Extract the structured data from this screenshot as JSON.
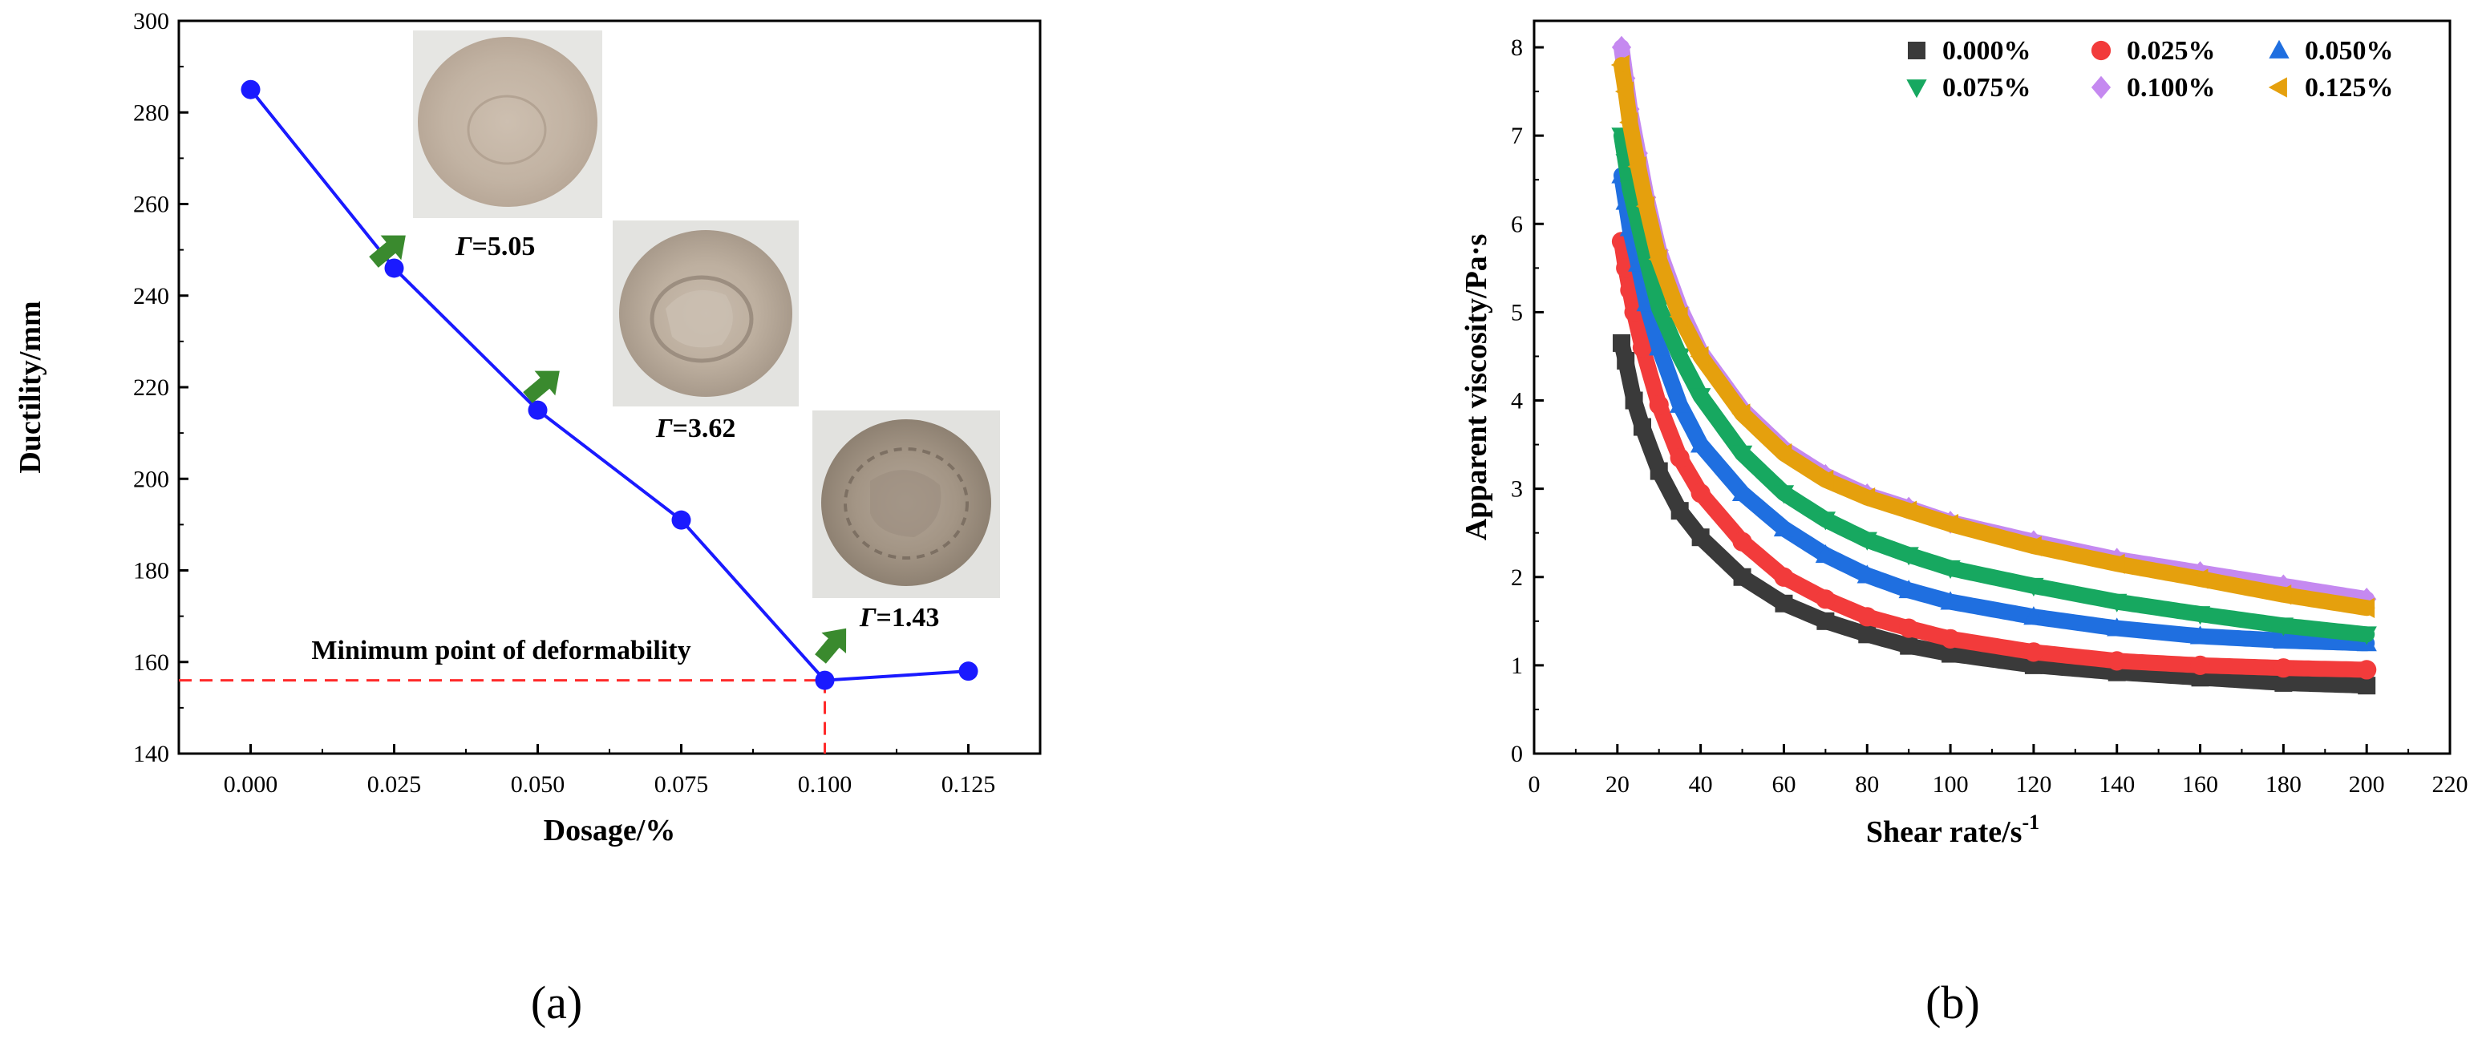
{
  "panel_labels": {
    "a": "(a)",
    "b": "(b)"
  },
  "annotations": {
    "minimum_point": "Minimum point of deformability",
    "gamma_symbol": "Γ",
    "gamma_values": [
      "=5.05",
      "=3.62",
      "=1.43"
    ]
  },
  "colors": {
    "line_a": "#1a1aff",
    "guide": "#ff2a2a",
    "arrow": "#3a8a2e",
    "series": [
      "#3a3a3a",
      "#f23b3b",
      "#1f6fe0",
      "#17a860",
      "#c589f0",
      "#e5a00d"
    ]
  },
  "chart_data": [
    {
      "type": "line",
      "xlabel": "Dosage/%",
      "ylabel": "Ductility/mm",
      "x": [
        0.0,
        0.025,
        0.05,
        0.075,
        0.1,
        0.125
      ],
      "y": [
        285,
        246,
        215,
        191,
        156,
        158
      ],
      "xlim": [
        -0.0125,
        0.1375
      ],
      "ylim": [
        140,
        300
      ],
      "xticks": [
        "0.000",
        "0.025",
        "0.050",
        "0.075",
        "0.100",
        "0.125"
      ],
      "yticks": [
        "140",
        "160",
        "180",
        "200",
        "220",
        "240",
        "260",
        "280",
        "300"
      ],
      "reference": {
        "x": 0.1,
        "y": 156
      },
      "grid": false
    },
    {
      "type": "scatter",
      "xlabel": "Shear rate/s",
      "xlabel_superscript": "-1",
      "ylabel": "Apparent viscosity/Pa·s",
      "xlim": [
        0,
        220
      ],
      "ylim": [
        0,
        8.3
      ],
      "xticks": [
        "0",
        "20",
        "40",
        "60",
        "80",
        "100",
        "120",
        "140",
        "160",
        "180",
        "200",
        "220"
      ],
      "yticks": [
        "0",
        "1",
        "2",
        "3",
        "4",
        "5",
        "6",
        "7",
        "8"
      ],
      "grid": false,
      "legend_position": "top-right",
      "series": [
        {
          "name": "0.000%",
          "marker": "square",
          "x": [
            21,
            22,
            24,
            26,
            30,
            35,
            40,
            50,
            60,
            70,
            80,
            90,
            100,
            120,
            140,
            160,
            180,
            200
          ],
          "y": [
            4.65,
            4.45,
            4.0,
            3.7,
            3.2,
            2.75,
            2.45,
            2.0,
            1.7,
            1.5,
            1.35,
            1.22,
            1.13,
            1.0,
            0.92,
            0.86,
            0.8,
            0.77
          ]
        },
        {
          "name": "0.025%",
          "marker": "circle",
          "x": [
            21,
            22,
            23,
            24,
            26,
            30,
            35,
            40,
            50,
            60,
            70,
            80,
            90,
            100,
            120,
            140,
            160,
            180,
            200
          ],
          "y": [
            5.8,
            5.5,
            5.25,
            5.0,
            4.6,
            3.95,
            3.35,
            2.95,
            2.4,
            2.0,
            1.75,
            1.55,
            1.42,
            1.3,
            1.15,
            1.05,
            1.0,
            0.97,
            0.95
          ]
        },
        {
          "name": "0.050%",
          "marker": "triangle-up",
          "x": [
            21,
            22,
            23,
            25,
            27,
            30,
            35,
            40,
            50,
            60,
            70,
            80,
            90,
            100,
            120,
            140,
            160,
            180,
            200
          ],
          "y": [
            6.55,
            6.25,
            5.95,
            5.55,
            5.1,
            4.6,
            3.95,
            3.5,
            2.95,
            2.55,
            2.25,
            2.02,
            1.85,
            1.72,
            1.55,
            1.42,
            1.33,
            1.28,
            1.25
          ]
        },
        {
          "name": "0.075%",
          "marker": "triangle-down",
          "x": [
            21,
            22,
            23,
            25,
            27,
            30,
            35,
            40,
            50,
            60,
            70,
            80,
            90,
            100,
            120,
            140,
            160,
            180,
            200
          ],
          "y": [
            7.0,
            6.7,
            6.4,
            6.0,
            5.6,
            5.05,
            4.5,
            4.05,
            3.4,
            2.95,
            2.65,
            2.42,
            2.25,
            2.1,
            1.9,
            1.72,
            1.58,
            1.45,
            1.35
          ]
        },
        {
          "name": "0.100%",
          "marker": "diamond",
          "x": [
            21,
            22,
            23,
            25,
            27,
            30,
            35,
            40,
            50,
            60,
            70,
            80,
            90,
            100,
            120,
            140,
            160,
            180,
            200
          ],
          "y": [
            8.0,
            7.65,
            7.3,
            6.8,
            6.3,
            5.7,
            5.05,
            4.55,
            3.9,
            3.45,
            3.15,
            2.93,
            2.78,
            2.62,
            2.4,
            2.2,
            2.05,
            1.9,
            1.75
          ]
        },
        {
          "name": "0.125%",
          "marker": "triangle-left",
          "x": [
            21,
            22,
            23,
            25,
            27,
            30,
            35,
            40,
            50,
            60,
            70,
            80,
            90,
            100,
            120,
            140,
            160,
            180,
            200
          ],
          "y": [
            7.8,
            7.5,
            7.15,
            6.65,
            6.2,
            5.6,
            4.95,
            4.5,
            3.85,
            3.4,
            3.1,
            2.9,
            2.75,
            2.6,
            2.35,
            2.15,
            1.98,
            1.8,
            1.65
          ]
        }
      ]
    }
  ]
}
